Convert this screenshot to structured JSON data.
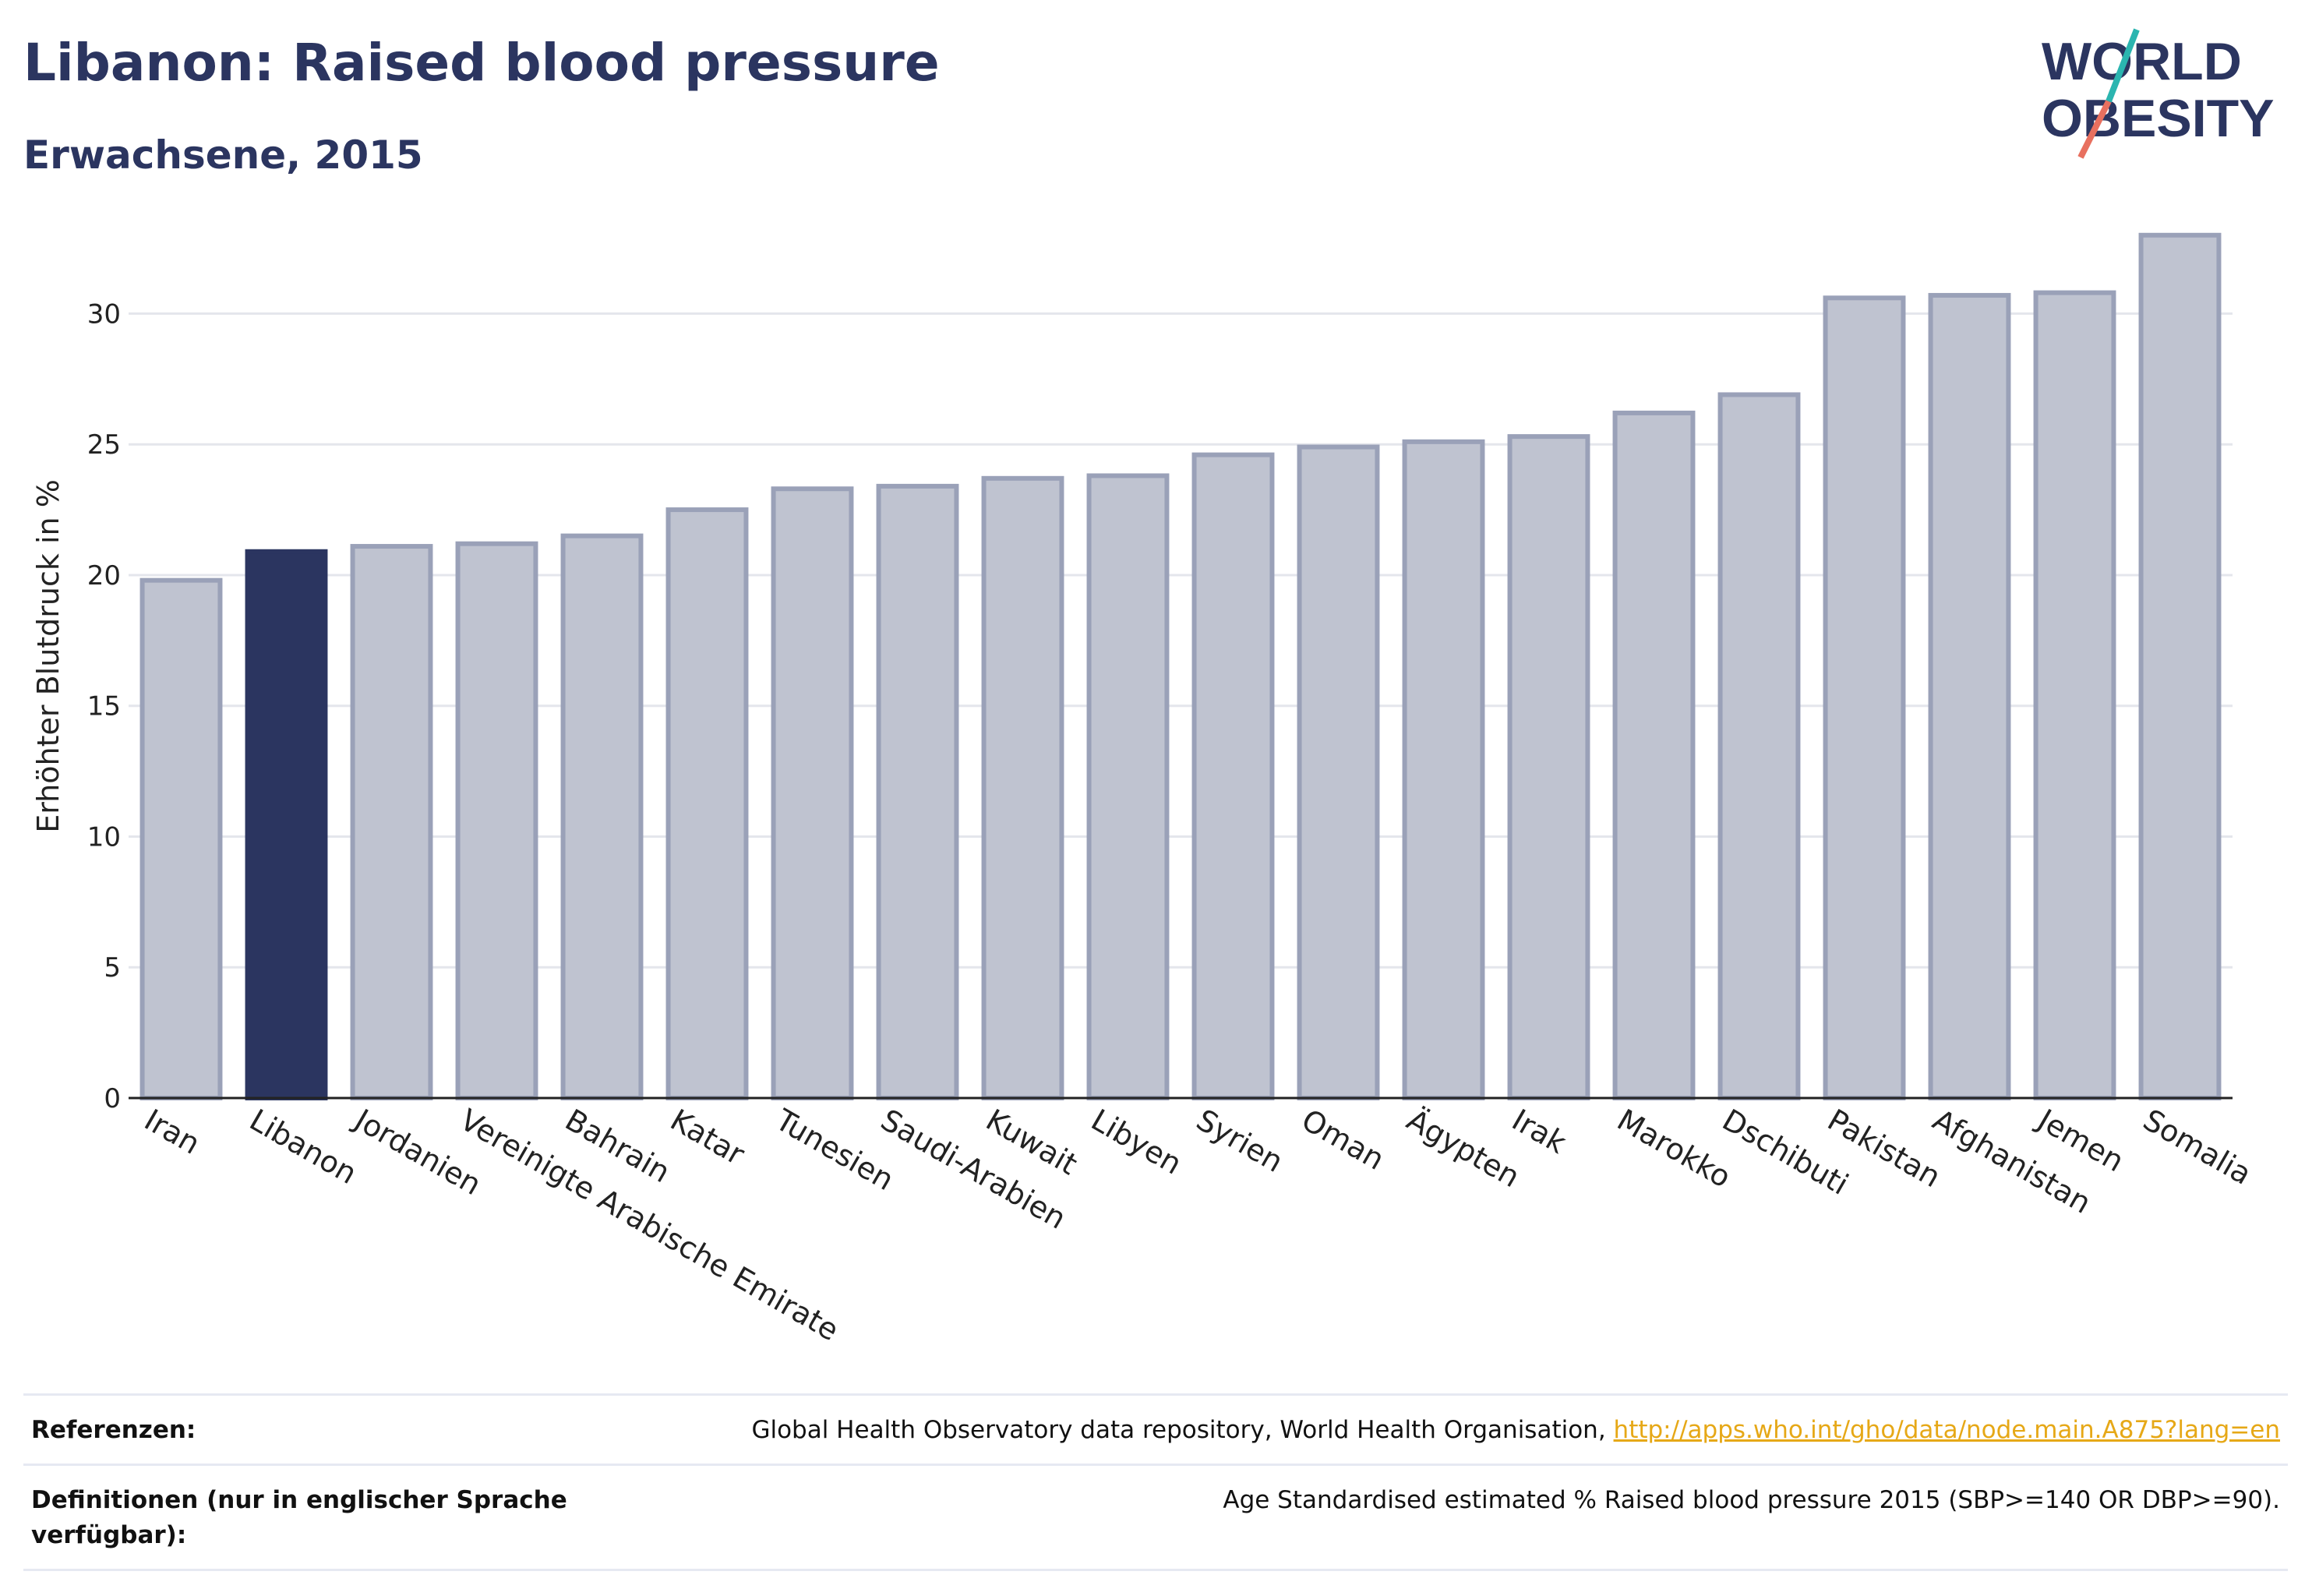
{
  "header": {
    "title": "Libanon: Raised blood pressure",
    "subtitle": "Erwachsene, 2015"
  },
  "logo": {
    "line1": "WORLD",
    "line2": "OBESITY",
    "colors": {
      "text": "#2b3560",
      "teal": "#2bb5b0",
      "coral": "#e8705f"
    }
  },
  "colors": {
    "highlight_bar": "#2b3560",
    "bar_fill": "#bfc3d0",
    "bar_stroke": "#9aa1b8",
    "grid": "#e4e6ec",
    "axis": "#222222"
  },
  "chart_data": {
    "type": "bar",
    "title": "",
    "xlabel": "",
    "ylabel": "Erhöhter Blutdruck in %",
    "ylim": [
      0,
      33.5
    ],
    "yticks": [
      0,
      5,
      10,
      15,
      20,
      25,
      30
    ],
    "grid": true,
    "highlight": "Libanon",
    "categories": [
      "Iran",
      "Libanon",
      "Jordanien",
      "Vereinigte Arabische Emirate",
      "Bahrain",
      "Katar",
      "Tunesien",
      "Saudi-Arabien",
      "Kuwait",
      "Libyen",
      "Syrien",
      "Oman",
      "Ägypten",
      "Irak",
      "Marokko",
      "Dschibuti",
      "Pakistan",
      "Afghanistan",
      "Jemen",
      "Somalia"
    ],
    "values": [
      19.8,
      20.9,
      21.1,
      21.2,
      21.5,
      22.5,
      23.3,
      23.4,
      23.7,
      23.8,
      24.6,
      24.9,
      25.1,
      25.3,
      26.2,
      26.9,
      30.6,
      30.7,
      30.8,
      33.0
    ]
  },
  "footer": {
    "references_label": "Referenzen:",
    "references_text": "Global Health Observatory data repository, World Health Organisation, ",
    "references_link": "http://apps.who.int/gho/data/node.main.A875?lang=en",
    "definitions_label": "Definitionen (nur in englischer Sprache verfügbar):",
    "definitions_text": "Age Standardised estimated % Raised blood pressure 2015 (SBP>=140 OR DBP>=90)."
  }
}
